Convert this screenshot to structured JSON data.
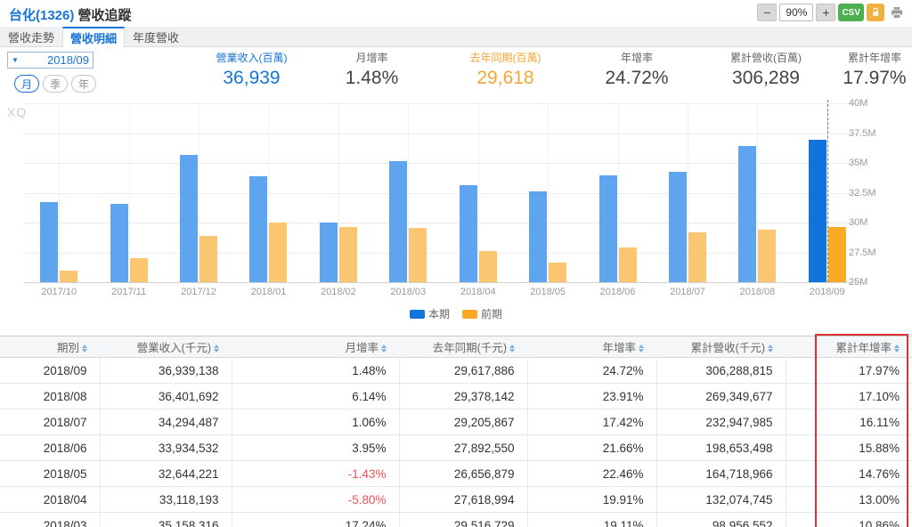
{
  "window": {
    "stock": "台化(1326)",
    "title": "營收追蹤"
  },
  "toolbar": {
    "zoom_out": "−",
    "zoom_value": "90%",
    "zoom_in": "+",
    "csv": "CSV"
  },
  "tabs": [
    {
      "label": "營收走勢",
      "active": false
    },
    {
      "label": "營收明細",
      "active": true
    },
    {
      "label": "年度營收",
      "active": false
    }
  ],
  "filters": {
    "period": "2018/09",
    "granularity": [
      {
        "label": "月",
        "active": true
      },
      {
        "label": "季",
        "active": false
      },
      {
        "label": "年",
        "active": false
      }
    ]
  },
  "stats": [
    {
      "label": "營業收入(百萬)",
      "value": "36,939",
      "style": "blue"
    },
    {
      "label": "月增率",
      "value": "1.48%",
      "style": "default"
    },
    {
      "label": "去年同期(百萬)",
      "value": "29,618",
      "style": "orange"
    },
    {
      "label": "年增率",
      "value": "24.72%",
      "style": "default"
    },
    {
      "label": "累計營收(百萬)",
      "value": "306,289",
      "style": "default"
    },
    {
      "label": "累計年增率",
      "value": "17.97%",
      "style": "default"
    }
  ],
  "chart_data": {
    "type": "bar",
    "watermark": "XQ",
    "categories": [
      "2017/10",
      "2017/11",
      "2017/12",
      "2018/01",
      "2018/02",
      "2018/03",
      "2018/04",
      "2018/05",
      "2018/06",
      "2018/07",
      "2018/08",
      "2018/09"
    ],
    "series": [
      {
        "name": "本期",
        "color": "#5fa4ef",
        "highlight_color": "#1273dc",
        "values": [
          31.7,
          31.6,
          35.65,
          33.85,
          30.0,
          35.16,
          33.12,
          32.64,
          33.93,
          34.29,
          36.4,
          36.94
        ]
      },
      {
        "name": "前期",
        "color": "#fac672",
        "highlight_color": "#fbaa28",
        "values": [
          26.0,
          27.0,
          28.9,
          30.0,
          29.6,
          29.52,
          27.62,
          26.66,
          27.89,
          29.21,
          29.38,
          29.62
        ]
      }
    ],
    "unit": "M (thousand TWD)",
    "ylim": [
      25,
      40
    ],
    "yticks": [
      "40M",
      "37.5M",
      "35M",
      "32.5M",
      "30M",
      "27.5M",
      "25M"
    ],
    "highlight_index": 11,
    "legend": [
      "本期",
      "前期"
    ],
    "legend_position": "bottom",
    "grid": true
  },
  "table": {
    "headers": [
      "期別",
      "營業收入(千元)",
      "月增率",
      "去年同期(千元)",
      "年增率",
      "累計營收(千元)",
      "累計年增率"
    ],
    "rows": [
      [
        "2018/09",
        "36,939,138",
        "1.48%",
        "29,617,886",
        "24.72%",
        "306,288,815",
        "17.97%"
      ],
      [
        "2018/08",
        "36,401,692",
        "6.14%",
        "29,378,142",
        "23.91%",
        "269,349,677",
        "17.10%"
      ],
      [
        "2018/07",
        "34,294,487",
        "1.06%",
        "29,205,867",
        "17.42%",
        "232,947,985",
        "16.11%"
      ],
      [
        "2018/06",
        "33,934,532",
        "3.95%",
        "27,892,550",
        "21.66%",
        "198,653,498",
        "15.88%"
      ],
      [
        "2018/05",
        "32,644,221",
        "-1.43%",
        "26,656,879",
        "22.46%",
        "164,718,966",
        "14.76%"
      ],
      [
        "2018/04",
        "33,118,193",
        "-5.80%",
        "27,618,994",
        "19.91%",
        "132,074,745",
        "13.00%"
      ],
      [
        "2018/03",
        "35,158,316",
        "17.24%",
        "29,516,729",
        "19.11%",
        "98,956,552",
        "10.86%"
      ]
    ],
    "highlighted_column": 6,
    "highlight_color": "#e03030",
    "negative_color": "#ee5253"
  }
}
